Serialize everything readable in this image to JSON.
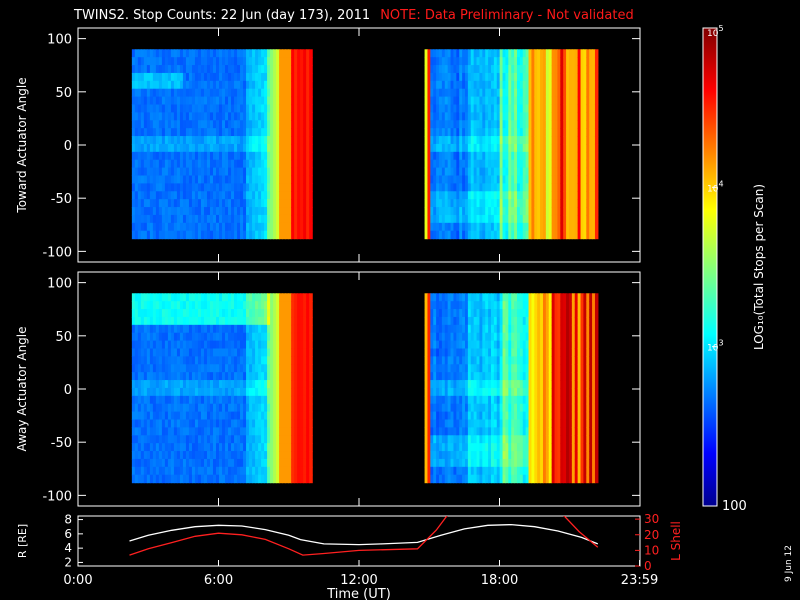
{
  "title": {
    "main": "TWINS2. Stop Counts: 22 Jun (day 173), 2011",
    "note": "NOTE: Data Preliminary - Not validated"
  },
  "stamp": "9 Jun 12",
  "colors": {
    "background": "#000000",
    "axis": "#ffffff",
    "note": "#ff1a1a",
    "radius_line": "#ffffff",
    "lshell_line": "#ff2020"
  },
  "chart_data": [
    {
      "type": "heatmap",
      "ylabel": "Toward Actuator Angle",
      "yticks": [
        100,
        50,
        0,
        -50,
        -100
      ],
      "ylim": [
        -110,
        110
      ],
      "xlim": [
        0,
        24
      ],
      "data_blocks": [
        {
          "x_start": 2.3,
          "x_end": 10.0,
          "y_start": -88,
          "y_end": 90
        },
        {
          "x_start": 14.8,
          "x_end": 22.2,
          "y_start": -88,
          "y_end": 90
        }
      ],
      "colorscale_shown": "log10 counts, blue (100) to red (1e5)"
    },
    {
      "type": "heatmap",
      "ylabel": "Away Actuator Angle",
      "yticks": [
        100,
        50,
        0,
        -50,
        -100
      ],
      "ylim": [
        -110,
        110
      ],
      "xlim": [
        0,
        24
      ],
      "data_blocks": [
        {
          "x_start": 2.3,
          "x_end": 10.0,
          "y_start": -88,
          "y_end": 90
        },
        {
          "x_start": 14.8,
          "x_end": 22.2,
          "y_start": -88,
          "y_end": 90
        }
      ]
    },
    {
      "type": "line",
      "ylabel_left": "R [RE]",
      "ylabel_right": "L Shell",
      "yticks_left": [
        2,
        4,
        6,
        8
      ],
      "yticks_right": [
        0,
        10,
        20,
        30
      ],
      "ylim_left": [
        1.5,
        8.5
      ],
      "ylim_right": [
        0,
        32
      ],
      "xlabel": "Time (UT)",
      "xticks": [
        "0:00",
        "6:00",
        "12:00",
        "18:00",
        "23:59"
      ],
      "xtick_values": [
        0,
        6,
        12,
        18,
        23.98
      ],
      "xlim": [
        0,
        24
      ],
      "series": [
        {
          "axis": "left",
          "color": "#ffffff",
          "x": [
            2.2,
            3,
            4,
            5,
            6,
            7,
            8,
            9,
            9.5,
            10.5,
            12,
            13,
            14.5,
            15.5,
            16.5,
            17.5,
            18.5,
            19.5,
            20.5,
            21.5,
            22.2
          ],
          "y": [
            5.0,
            5.8,
            6.5,
            7.0,
            7.2,
            7.1,
            6.6,
            5.8,
            5.2,
            4.6,
            4.5,
            4.6,
            4.8,
            5.8,
            6.7,
            7.2,
            7.3,
            7.0,
            6.4,
            5.5,
            4.6
          ]
        },
        {
          "axis": "right",
          "color": "#ff2020",
          "x": [
            2.2,
            3,
            4,
            5,
            6,
            7,
            8,
            9,
            9.6,
            10.5,
            12,
            14.5,
            15.3,
            15.8
          ],
          "y": [
            7,
            11,
            15,
            19,
            21,
            20,
            17,
            11,
            7,
            8,
            10,
            11,
            23,
            33
          ]
        },
        {
          "axis": "right",
          "color": "#ff2020",
          "x": [
            20.7,
            21.4,
            22.2
          ],
          "y": [
            33,
            22,
            12
          ]
        }
      ]
    },
    {
      "type": "colorbar",
      "label": "LOG10(Total Stops per Scan)",
      "ticks": [
        "10^5",
        "10^4",
        "10^3",
        "100"
      ],
      "log_range": [
        2,
        5
      ]
    }
  ]
}
